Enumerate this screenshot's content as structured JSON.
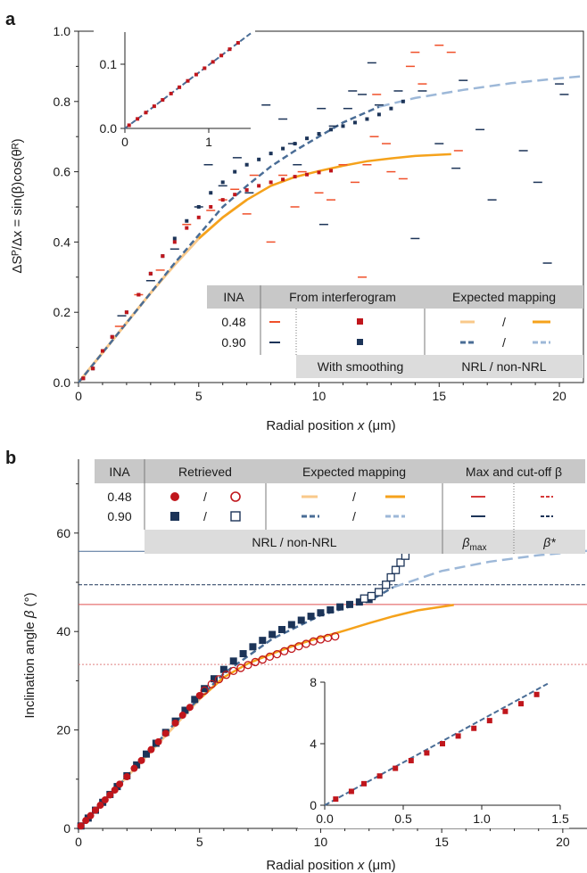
{
  "panel_a": {
    "letter": "a",
    "ylabel": "ΔSᴾ/Δx = sin(β)cos(θᴿ)",
    "xlabel_pre": "Radial position ",
    "xlabel_var": "x",
    "xlabel_unit": " (μm)",
    "table": {
      "h_ina": "INA",
      "h_interf": "From interferogram",
      "h_expected": "Expected mapping",
      "rows": [
        "0.48",
        "0.90"
      ],
      "slash": "/",
      "f_smoothing": "With smoothing",
      "f_nrl": "NRL / non-NRL"
    }
  },
  "panel_b": {
    "letter": "b",
    "ylabel_pre": "Inclination angle ",
    "ylabel_var": "β",
    "ylabel_unit": " (°)",
    "xlabel_pre": "Radial position ",
    "xlabel_var": "x",
    "xlabel_unit": " (μm)",
    "table": {
      "h_ina": "INA",
      "h_retrieved": "Retrieved",
      "h_expected": "Expected mapping",
      "h_max": "Max and cut-off β",
      "rows": [
        "0.48",
        "0.90"
      ],
      "slash": "/",
      "f_nrl": "NRL / non-NRL",
      "f_bmax": "β",
      "f_bmax_sub": "max",
      "f_bstar": "β*"
    }
  },
  "colors": {
    "red": "#c0161c",
    "navy": "#1c3458",
    "orange": "#f5a21b",
    "light_orange": "#f9c98a",
    "steel": "#4a6d96",
    "light_blue": "#9db8d8",
    "bright_red": "#f0502a",
    "gray": "#cfcfcf"
  },
  "chart_data": [
    {
      "type": "scatter",
      "xlim": [
        0,
        21
      ],
      "ylim": [
        0,
        1.0
      ],
      "xticks": [
        "0",
        "5",
        "10",
        "15",
        "20"
      ],
      "yticks": [
        "0.0",
        "0.2",
        "0.4",
        "0.6",
        "0.8",
        "1.0"
      ],
      "series": [
        {
          "name": "0.48",
          "kind": "From interferogram",
          "x": [
            0.2,
            0.6,
            1.0,
            1.4,
            2.0,
            2.5,
            3.0,
            3.5,
            4.0,
            4.5,
            5.0,
            5.5,
            6.0,
            6.5,
            7.0,
            7.5,
            8.0,
            8.5,
            9.0,
            9.5,
            10.0,
            10.5
          ],
          "y": [
            0.012,
            0.04,
            0.09,
            0.13,
            0.2,
            0.25,
            0.31,
            0.36,
            0.4,
            0.44,
            0.47,
            0.5,
            0.52,
            0.535,
            0.548,
            0.56,
            0.57,
            0.578,
            0.586,
            0.592,
            0.598,
            0.603
          ]
        },
        {
          "name": "0.90",
          "kind": "From interferogram",
          "x": [
            0.2,
            0.6,
            1.0,
            1.4,
            2.0,
            2.5,
            3.0,
            3.5,
            4.0,
            4.5,
            5.0,
            5.5,
            6.0,
            6.5,
            7.0,
            7.5,
            8.0,
            8.5,
            9.0,
            9.5,
            10.0,
            10.5,
            11.0,
            11.5,
            12.0,
            12.5,
            13.0,
            13.5
          ],
          "y": [
            0.012,
            0.04,
            0.09,
            0.13,
            0.2,
            0.25,
            0.31,
            0.36,
            0.41,
            0.46,
            0.5,
            0.54,
            0.57,
            0.6,
            0.62,
            0.635,
            0.652,
            0.666,
            0.68,
            0.695,
            0.708,
            0.72,
            0.73,
            0.74,
            0.75,
            0.763,
            0.78,
            0.8
          ]
        },
        {
          "name": "0.48",
          "kind": "Expected mapping NRL",
          "x": [
            0,
            1,
            2,
            3,
            4,
            5,
            6,
            7
          ],
          "y": [
            0,
            0.085,
            0.17,
            0.255,
            0.335,
            0.41,
            0.47,
            0.52
          ]
        },
        {
          "name": "0.48",
          "kind": "Expected mapping non-NRL",
          "x": [
            5,
            6,
            7,
            8,
            9,
            10,
            11,
            12,
            13,
            14,
            15.5
          ],
          "y": [
            0.41,
            0.47,
            0.52,
            0.56,
            0.585,
            0.602,
            0.617,
            0.63,
            0.638,
            0.645,
            0.65
          ]
        },
        {
          "name": "0.90",
          "kind": "Expected mapping NRL",
          "x": [
            0,
            1,
            2,
            3,
            4,
            5,
            6,
            7,
            8,
            9,
            10,
            11,
            12,
            12.5
          ],
          "y": [
            0,
            0.085,
            0.17,
            0.255,
            0.34,
            0.42,
            0.5,
            0.56,
            0.615,
            0.66,
            0.7,
            0.74,
            0.77,
            0.785
          ]
        },
        {
          "name": "0.90",
          "kind": "Expected mapping non-NRL",
          "x": [
            12.5,
            14,
            16,
            18,
            20,
            21
          ],
          "y": [
            0.785,
            0.81,
            0.833,
            0.852,
            0.866,
            0.872
          ]
        },
        {
          "name": "0.48",
          "kind": "From interferogram (scatter)",
          "x": [
            1.7,
            2.5,
            3.4,
            4.5,
            5.5,
            6.0,
            6.5,
            7.0,
            7.3,
            8.0,
            8.5,
            9.0,
            9.3,
            10.0,
            10.5,
            11.0,
            11.5,
            11.8,
            12.0,
            12.3,
            12.4,
            12.8,
            13.0,
            13.5,
            13.8,
            14.0,
            14.3,
            15.0,
            15.5,
            15.8
          ],
          "y": [
            0.16,
            0.25,
            0.32,
            0.45,
            0.49,
            0.52,
            0.55,
            0.48,
            0.59,
            0.4,
            0.59,
            0.5,
            0.6,
            0.54,
            0.52,
            0.62,
            0.57,
            0.3,
            0.62,
            0.7,
            0.82,
            0.68,
            0.6,
            0.58,
            0.9,
            0.94,
            0.85,
            0.96,
            0.94,
            0.66
          ]
        },
        {
          "name": "0.90",
          "kind": "From interferogram (scatter)",
          "x": [
            1.8,
            3.0,
            4.0,
            5.0,
            5.4,
            6.0,
            6.6,
            7.1,
            7.8,
            8.5,
            8.9,
            9.1,
            10.1,
            10.2,
            10.6,
            11.2,
            11.4,
            11.8,
            12.2,
            12.5,
            13.3,
            14.0,
            14.3,
            15.0,
            15.7,
            16.0,
            16.7,
            17.2,
            18.5,
            19.1,
            19.5,
            20.0,
            20.2
          ],
          "y": [
            0.19,
            0.29,
            0.38,
            0.5,
            0.62,
            0.56,
            0.64,
            0.54,
            0.79,
            0.75,
            0.68,
            0.62,
            0.78,
            0.45,
            0.73,
            0.78,
            0.83,
            0.82,
            0.91,
            0.79,
            0.83,
            0.41,
            0.83,
            0.68,
            0.61,
            0.86,
            0.72,
            0.52,
            0.66,
            0.57,
            0.34,
            0.85,
            0.82
          ]
        }
      ],
      "inset": {
        "xlim": [
          0,
          1.5
        ],
        "ylim": [
          0,
          0.15
        ],
        "xticks": [
          "0",
          "1"
        ],
        "yticks": [
          "0.0",
          "0.1"
        ]
      }
    },
    {
      "type": "scatter",
      "xlim": [
        0,
        21
      ],
      "ylim": [
        0,
        75
      ],
      "xticks": [
        "0",
        "5",
        "10",
        "15",
        "20"
      ],
      "yticks": [
        "0",
        "20",
        "40",
        "60"
      ],
      "series": [
        {
          "name": "0.48",
          "kind": "Retrieved NRL",
          "x": [
            0.1,
            0.3,
            0.5,
            0.7,
            0.9,
            1.1,
            1.3,
            1.5,
            1.7,
            2.0,
            2.3,
            2.6,
            3.0,
            3.3,
            3.6,
            4.0,
            4.3,
            4.6,
            5.0
          ],
          "y": [
            0.5,
            1.6,
            2.6,
            3.7,
            4.7,
            5.8,
            6.8,
            7.8,
            9.0,
            10.5,
            12.2,
            13.8,
            16.0,
            17.6,
            19.3,
            21.4,
            23.0,
            24.6,
            27.0
          ]
        },
        {
          "name": "0.48",
          "kind": "Retrieved non-NRL",
          "x": [
            5.2,
            5.5,
            5.8,
            6.1,
            6.4,
            6.7,
            7.0,
            7.3,
            7.6,
            7.9,
            8.2,
            8.5,
            8.8,
            9.1,
            9.4,
            9.7,
            10.0,
            10.3,
            10.6
          ],
          "y": [
            28.0,
            29.3,
            30.3,
            31.2,
            32.0,
            32.6,
            33.2,
            33.8,
            34.3,
            34.9,
            35.4,
            36.0,
            36.5,
            37.0,
            37.5,
            38.0,
            38.4,
            38.7,
            39.0
          ]
        },
        {
          "name": "0.90",
          "kind": "Retrieved NRL",
          "x": [
            0.1,
            0.4,
            0.7,
            1.0,
            1.3,
            1.6,
            2.0,
            2.4,
            2.8,
            3.2,
            3.6,
            4.0,
            4.4,
            4.8,
            5.2,
            5.6,
            6.0,
            6.4,
            6.8,
            7.2,
            7.6,
            8.0,
            8.4,
            8.8,
            9.2,
            9.6,
            10.0,
            10.4,
            10.8,
            11.2,
            11.6,
            12.0
          ],
          "y": [
            0.5,
            2.1,
            3.7,
            5.3,
            6.9,
            8.5,
            10.7,
            12.9,
            15.1,
            17.3,
            19.5,
            21.8,
            24.0,
            26.2,
            28.4,
            30.4,
            32.3,
            34.0,
            35.5,
            36.9,
            38.2,
            39.4,
            40.4,
            41.4,
            42.3,
            43.1,
            43.8,
            44.4,
            45.0,
            45.5,
            46.0,
            46.5
          ]
        },
        {
          "name": "0.90",
          "kind": "Retrieved non-NRL",
          "x": [
            11.8,
            12.1,
            12.4,
            12.7,
            12.9,
            13.1,
            13.3,
            13.5
          ],
          "y": [
            46.7,
            47.2,
            48.0,
            49.5,
            51.0,
            52.5,
            54.0,
            55.4
          ]
        },
        {
          "name": "0.48",
          "kind": "Expected mapping NRL",
          "x": [
            0,
            1,
            2,
            3,
            4,
            5,
            6
          ],
          "y": [
            0,
            5.3,
            10.5,
            15.7,
            21.0,
            26.3,
            30.7
          ]
        },
        {
          "name": "0.48",
          "kind": "Expected mapping non-NRL",
          "x": [
            5,
            6,
            7,
            8,
            9,
            10,
            11,
            12,
            13,
            14,
            15.5
          ],
          "y": [
            26.3,
            30.7,
            33.5,
            35.5,
            37.3,
            38.8,
            40.2,
            41.7,
            43.1,
            44.3,
            45.4
          ]
        },
        {
          "name": "0.90",
          "kind": "Expected mapping NRL",
          "x": [
            0,
            2,
            4,
            6,
            8,
            10,
            12,
            13
          ],
          "y": [
            0,
            10.5,
            21.5,
            31.5,
            38.5,
            43.3,
            46.2,
            49.0
          ]
        },
        {
          "name": "0.90",
          "kind": "Expected mapping non-NRL",
          "x": [
            13,
            15,
            17,
            19,
            21
          ],
          "y": [
            49.0,
            52.3,
            54.2,
            55.5,
            56.4
          ]
        },
        {
          "name": "0.48",
          "kind": "β_max",
          "y": 45.5
        },
        {
          "name": "0.48",
          "kind": "β*",
          "y": 33.3
        },
        {
          "name": "0.90",
          "kind": "β_max",
          "y": 56.3
        },
        {
          "name": "0.90",
          "kind": "β*",
          "y": 49.5
        }
      ],
      "inset": {
        "xlim": [
          0,
          1.5
        ],
        "ylim": [
          0,
          8
        ],
        "xticks": [
          "0.0",
          "0.5",
          "1.0",
          "1.5"
        ],
        "yticks": [
          "0",
          "4",
          "8"
        ],
        "x": [
          0.07,
          0.17,
          0.25,
          0.35,
          0.45,
          0.55,
          0.65,
          0.75,
          0.85,
          0.95,
          1.05,
          1.15,
          1.25,
          1.35
        ],
        "y": [
          0.4,
          0.9,
          1.4,
          1.9,
          2.4,
          2.9,
          3.4,
          4.0,
          4.5,
          5.0,
          5.5,
          6.1,
          6.6,
          7.2
        ]
      }
    }
  ]
}
